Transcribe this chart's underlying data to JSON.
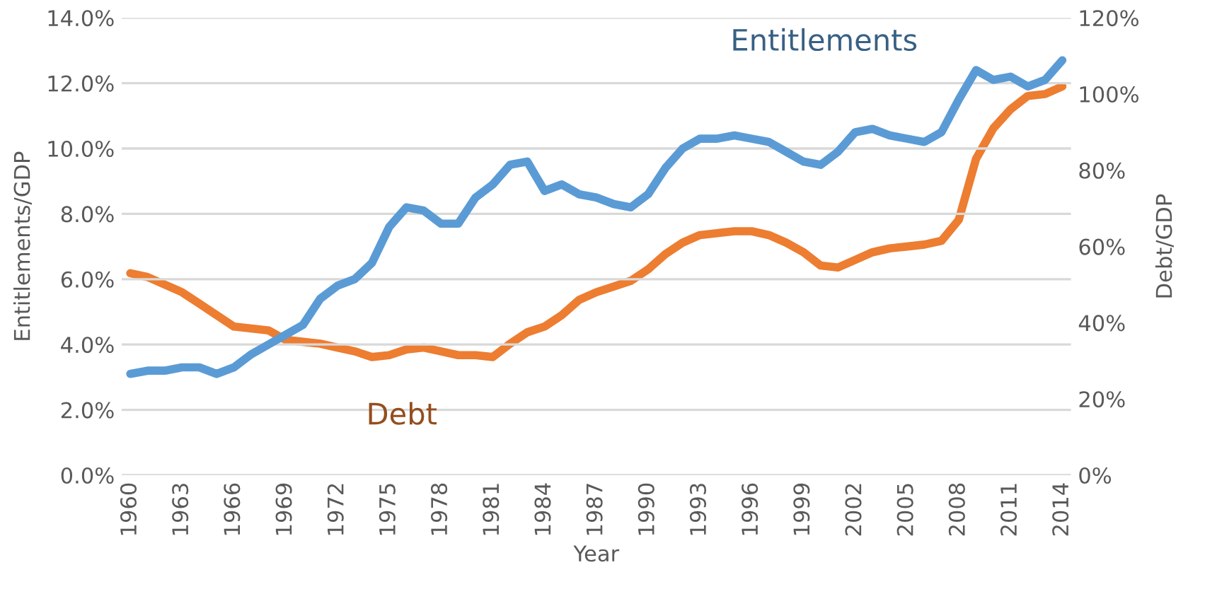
{
  "chart_data": {
    "type": "line",
    "xlabel": "Year",
    "ylabel": "Entitlements/GDP",
    "y2label": "Debt/GDP",
    "categories": [
      "1960",
      null,
      null,
      "1963",
      null,
      null,
      "1966",
      null,
      null,
      "1969",
      null,
      null,
      "1972",
      null,
      null,
      "1975",
      null,
      null,
      "1978",
      null,
      null,
      "1981",
      null,
      null,
      "1984",
      null,
      null,
      "1987",
      null,
      null,
      "1990",
      null,
      null,
      "1993",
      null,
      null,
      "1996",
      null,
      null,
      "1999",
      null,
      null,
      "2002",
      null,
      null,
      "2005",
      null,
      null,
      "2008",
      null,
      null,
      "2011",
      null,
      null,
      "2014"
    ],
    "series": [
      {
        "name": "Entitlements",
        "color": "#5b9bd5",
        "values": [
          3.1,
          3.2,
          3.2,
          3.3,
          3.3,
          3.1,
          3.3,
          3.7,
          4.0,
          4.3,
          4.6,
          5.4,
          5.8,
          6.0,
          6.5,
          7.6,
          8.2,
          8.1,
          7.7,
          7.7,
          8.5,
          8.9,
          9.5,
          9.6,
          8.7,
          8.9,
          8.6,
          8.5,
          8.3,
          8.2,
          8.6,
          9.4,
          10.0,
          10.3,
          10.3,
          10.4,
          10.3,
          10.2,
          9.9,
          9.6,
          9.5,
          9.9,
          10.5,
          10.6,
          10.4,
          10.3,
          10.2,
          10.5,
          11.5,
          12.4,
          12.1,
          12.2,
          11.9,
          12.1,
          12.7
        ]
      },
      {
        "name": "Debt",
        "color": "#ed7d31",
        "axis": "y2",
        "values": [
          53,
          52,
          50,
          48,
          45,
          42,
          39,
          38.5,
          38,
          35.5,
          35,
          34.5,
          33.5,
          32.5,
          31,
          31.5,
          33,
          33.5,
          32.5,
          31.5,
          31.5,
          31,
          34.5,
          37.5,
          39,
          42,
          46,
          48,
          49.5,
          51,
          54,
          58,
          61,
          63,
          63.5,
          64,
          64,
          63,
          61,
          58.5,
          55,
          54.5,
          56.5,
          58.5,
          59.5,
          60,
          60.5,
          61.5,
          67,
          83,
          91,
          96,
          99.5,
          100,
          102
        ]
      }
    ],
    "ylim": [
      0,
      14
    ],
    "yticks": [
      {
        "value": 0,
        "label": "0.0%"
      },
      {
        "value": 2,
        "label": "2.0%"
      },
      {
        "value": 4,
        "label": "4.0%"
      },
      {
        "value": 6,
        "label": "6.0%"
      },
      {
        "value": 8,
        "label": "8.0%"
      },
      {
        "value": 10,
        "label": "10.0%"
      },
      {
        "value": 12,
        "label": "12.0%"
      },
      {
        "value": 14,
        "label": "14.0%"
      }
    ],
    "y2lim": [
      0,
      120
    ],
    "y2ticks": [
      {
        "value": 0,
        "label": "0%"
      },
      {
        "value": 20,
        "label": "20%"
      },
      {
        "value": 40,
        "label": "40%"
      },
      {
        "value": 60,
        "label": "60%"
      },
      {
        "value": 80,
        "label": "80%"
      },
      {
        "value": 100,
        "label": "100%"
      },
      {
        "value": 120,
        "label": "120%"
      }
    ],
    "grid": "y",
    "legend": false,
    "line_style": "solid",
    "marker": "none"
  }
}
